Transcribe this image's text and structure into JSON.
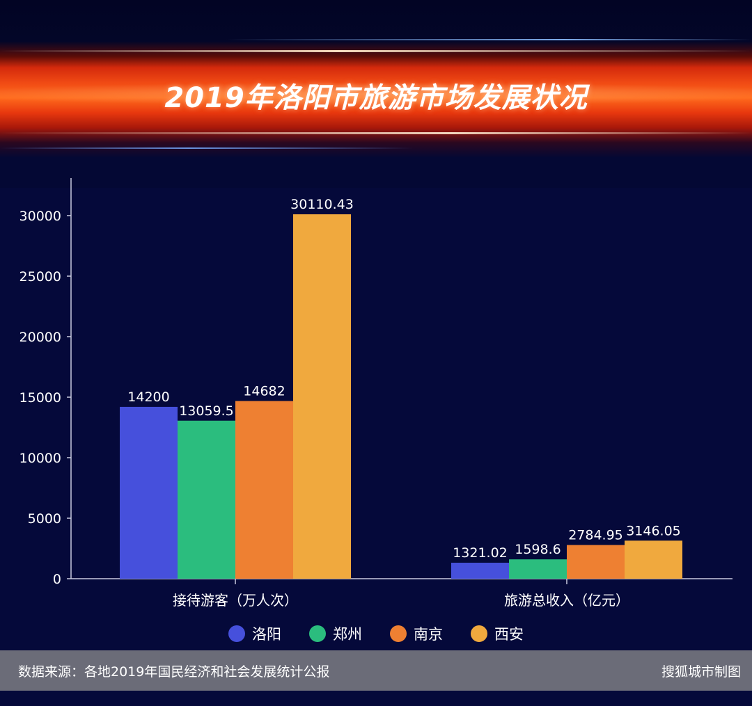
{
  "header": {
    "title": "2019年洛阳市旅游市场发展状况"
  },
  "chart_data": {
    "type": "bar",
    "categories": [
      "接待游客（万人次）",
      "旅游总收入（亿元）"
    ],
    "series": [
      {
        "name": "洛阳",
        "color": "#4650dc",
        "values": [
          14200,
          1321.02
        ],
        "labels": [
          "14200",
          "1321.02"
        ]
      },
      {
        "name": "郑州",
        "color": "#2bbd7e",
        "values": [
          13059.5,
          1598.6
        ],
        "labels": [
          "13059.5",
          "1598.6"
        ]
      },
      {
        "name": "南京",
        "color": "#ee8032",
        "values": [
          14682,
          2784.95
        ],
        "labels": [
          "14682",
          "2784.95"
        ]
      },
      {
        "name": "西安",
        "color": "#f0a93e",
        "values": [
          30110.43,
          3146.05
        ],
        "labels": [
          "30110.43",
          "3146.05"
        ]
      }
    ],
    "yticks": [
      0,
      5000,
      10000,
      15000,
      20000,
      25000,
      30000
    ],
    "ylim": [
      0,
      31500
    ],
    "grid": false,
    "legend": "bottom-center"
  },
  "footer": {
    "source": "数据来源：各地2019年国民经济和社会发展统计公报",
    "credit": "搜狐城市制图"
  }
}
